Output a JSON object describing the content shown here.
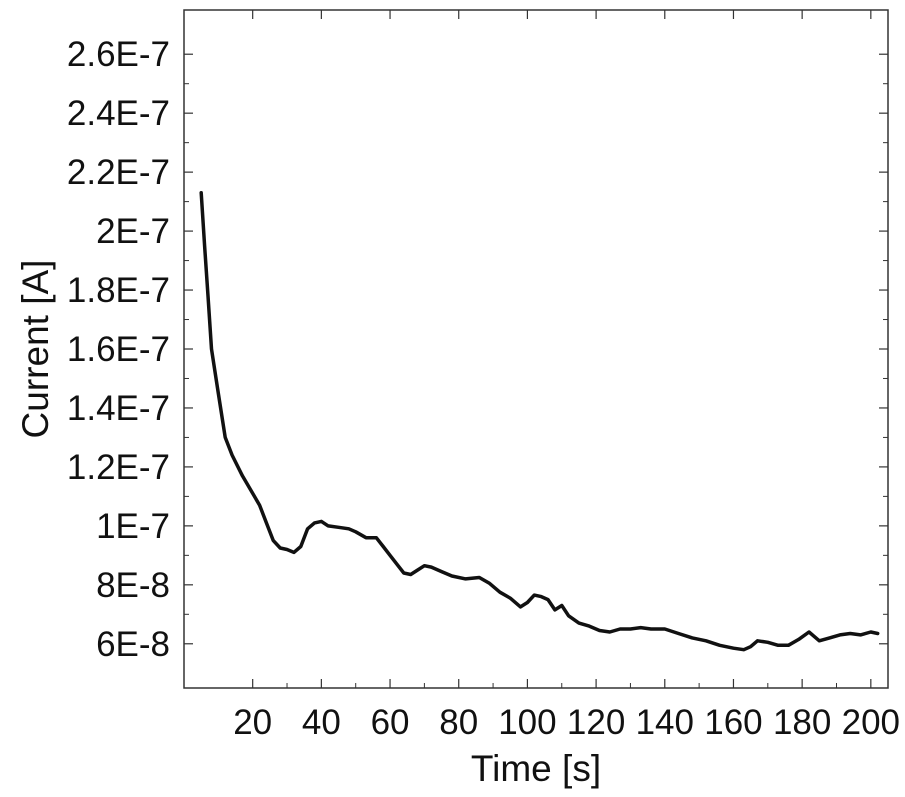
{
  "chart_data": {
    "type": "line",
    "title": "",
    "xlabel": "Time [s]",
    "ylabel": "Current [A]",
    "xlim": [
      0,
      205
    ],
    "ylim": [
      4.5e-08,
      2.75e-07
    ],
    "grid": false,
    "x_ticks": [
      20,
      40,
      60,
      80,
      100,
      120,
      140,
      160,
      180,
      200
    ],
    "x_tick_labels": [
      "20",
      "40",
      "60",
      "80",
      "100",
      "120",
      "140",
      "160",
      "180",
      "200"
    ],
    "y_ticks": [
      6e-08,
      8e-08,
      1e-07,
      1.2e-07,
      1.4e-07,
      1.6e-07,
      1.8e-07,
      2e-07,
      2.2e-07,
      2.4e-07,
      2.6e-07
    ],
    "y_tick_labels": [
      "6E-8",
      "8E-8",
      "1E-7",
      "1.2E-7",
      "1.4E-7",
      "1.6E-7",
      "1.8E-7",
      "2E-7",
      "2.2E-7",
      "2.4E-7",
      "2.6E-7"
    ],
    "series": [
      {
        "name": "",
        "color": "#111111",
        "x": [
          5,
          6,
          7,
          8,
          10,
          12,
          14,
          17,
          20,
          22,
          24,
          26,
          28,
          30,
          32,
          34,
          36,
          38,
          40,
          42,
          45,
          48,
          50,
          53,
          56,
          58,
          60,
          62,
          64,
          66,
          68,
          70,
          72,
          75,
          78,
          82,
          86,
          89,
          92,
          95,
          98,
          100,
          102,
          104,
          106,
          108,
          110,
          112,
          115,
          118,
          121,
          124,
          127,
          130,
          133,
          136,
          140,
          144,
          148,
          152,
          156,
          160,
          163,
          165,
          167,
          170,
          173,
          176,
          179,
          182,
          185,
          188,
          191,
          194,
          197,
          200,
          202
        ],
        "y": [
          2.13e-07,
          1.95e-07,
          1.78e-07,
          1.6e-07,
          1.45e-07,
          1.3e-07,
          1.24e-07,
          1.17e-07,
          1.11e-07,
          1.07e-07,
          1.01e-07,
          9.5e-08,
          9.25e-08,
          9.2e-08,
          9.1e-08,
          9.3e-08,
          9.9e-08,
          1.01e-07,
          1.015e-07,
          1e-07,
          9.95e-08,
          9.9e-08,
          9.8e-08,
          9.6e-08,
          9.6e-08,
          9.3e-08,
          9e-08,
          8.7e-08,
          8.4e-08,
          8.35e-08,
          8.5e-08,
          8.65e-08,
          8.6e-08,
          8.45e-08,
          8.3e-08,
          8.2e-08,
          8.25e-08,
          8.05e-08,
          7.75e-08,
          7.55e-08,
          7.25e-08,
          7.4e-08,
          7.65e-08,
          7.6e-08,
          7.5e-08,
          7.15e-08,
          7.3e-08,
          6.95e-08,
          6.7e-08,
          6.6e-08,
          6.45e-08,
          6.4e-08,
          6.5e-08,
          6.5e-08,
          6.55e-08,
          6.5e-08,
          6.5e-08,
          6.35e-08,
          6.2e-08,
          6.1e-08,
          5.95e-08,
          5.85e-08,
          5.8e-08,
          5.9e-08,
          6.1e-08,
          6.05e-08,
          5.95e-08,
          5.95e-08,
          6.15e-08,
          6.4e-08,
          6.1e-08,
          6.2e-08,
          6.3e-08,
          6.35e-08,
          6.3e-08,
          6.4e-08,
          6.35e-08
        ]
      }
    ]
  }
}
